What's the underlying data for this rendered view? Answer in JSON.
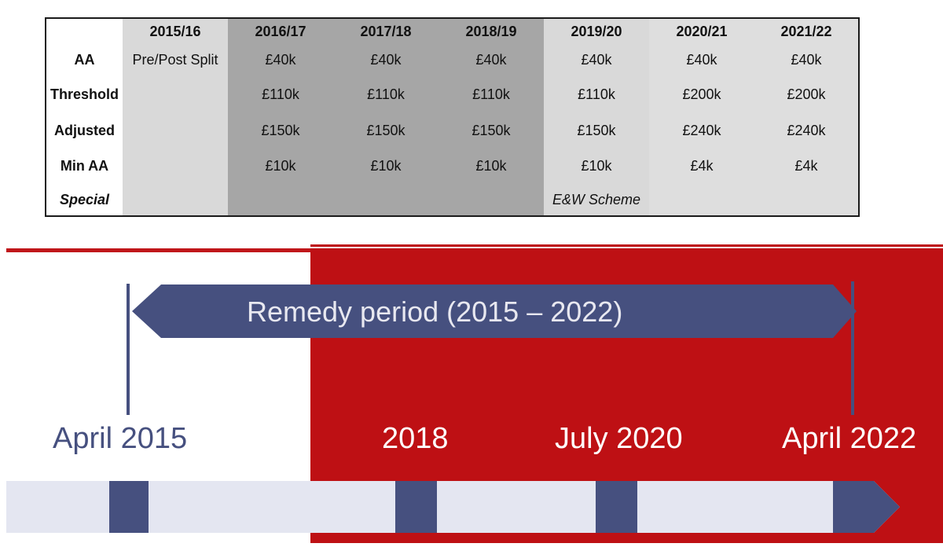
{
  "table": {
    "years": [
      "2015/16",
      "2016/17",
      "2017/18",
      "2018/19",
      "2019/20",
      "2020/21",
      "2021/22"
    ],
    "rows": [
      {
        "label": "AA",
        "values": [
          "Pre/Post Split",
          "£40k",
          "£40k",
          "£40k",
          "£40k",
          "£40k",
          "£40k"
        ]
      },
      {
        "label": "Threshold",
        "values": [
          "",
          "£110k",
          "£110k",
          "£110k",
          "£110k",
          "£200k",
          "£200k"
        ]
      },
      {
        "label": "Adjusted",
        "values": [
          "",
          "£150k",
          "£150k",
          "£150k",
          "£150k",
          "£240k",
          "£240k"
        ]
      },
      {
        "label": "Min AA",
        "values": [
          "",
          "£10k",
          "£10k",
          "£10k",
          "£10k",
          "£4k",
          "£4k"
        ]
      },
      {
        "label": "Special",
        "values": [
          "",
          "",
          "",
          "",
          "E&W Scheme",
          "",
          ""
        ]
      }
    ]
  },
  "timeline": {
    "remedy_label": "Remedy period (2015 – 2022)",
    "milestones": [
      "April 2015",
      "2018",
      "July 2020",
      "April 2022"
    ]
  },
  "colors": {
    "navy": "#46507f",
    "red": "#be1014",
    "track": "#e4e6f1",
    "table_light": "#d9d9d9",
    "table_mid": "#a6a6a6"
  }
}
